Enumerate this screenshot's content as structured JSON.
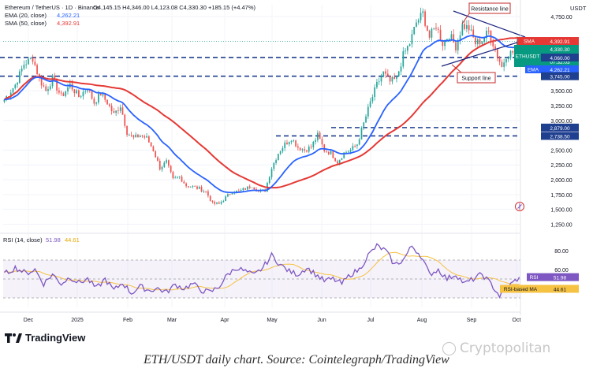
{
  "header": {
    "symbol": "Ethereum / TetherUS · 1D · Binance",
    "ohlc": "O4,145.15  H4,346.00  L4,123.08  C4,330.30  +185.15 (+4.47%)",
    "ema_label": "EMA (20, close)",
    "ema_value": "4,262.21",
    "sma_label": "SMA (50, close)",
    "sma_value": "4,392.91",
    "currency": "USDT"
  },
  "rsi_header": {
    "label": "RSI (14, close)",
    "value1": "51.98",
    "value2": "44.61"
  },
  "annotations": {
    "resistance": "Resistance line",
    "support": "Support line"
  },
  "tags": {
    "sma_name": "SMA",
    "sma_value": "4,392.91",
    "price_name": "ETHUSDT",
    "price_value": "4,330.30",
    "price_change": "+35.87%",
    "price_time": "07:32:03",
    "ema_name": "EMA",
    "ema_value": "4,262.21",
    "level_4060": "4,060.00",
    "level_3745": "3,745.00",
    "level_2879": "2,879.00",
    "level_2738": "2,738.50",
    "rsi_name": "RSI",
    "rsi_value": "51.98",
    "rsima_name": "RSI-based MA",
    "rsima_value": "44.61"
  },
  "branding": {
    "logo": "TradingView",
    "watermark": "Cryptopolitan"
  },
  "caption": "ETH/USDT daily chart. Source: Cointelegraph/TradingView",
  "colors": {
    "candle_up": "#26a69a",
    "candle_down": "#ef5350",
    "ema": "#2962ff",
    "sma": "#e53935",
    "rsi": "#7e57c2",
    "rsi_ma": "#f5c242",
    "level": "#1f3f8f",
    "annotation": "#c62828"
  },
  "chart_data": {
    "type": "candlestick",
    "x_labels": [
      "Dec",
      "2025",
      "Feb",
      "Mar",
      "Apr",
      "May",
      "Jun",
      "Jul",
      "Aug",
      "Sep",
      "Oct"
    ],
    "y_ticks": [
      1250,
      1500,
      1750,
      2000,
      2250,
      2500,
      3000,
      3250,
      3500,
      4750
    ],
    "ylim": [
      1150,
      4950
    ],
    "anchors": [
      [
        0,
        3350
      ],
      [
        5,
        3600
      ],
      [
        9,
        3950
      ],
      [
        13,
        4050
      ],
      [
        16,
        3700
      ],
      [
        19,
        3500
      ],
      [
        22,
        3700
      ],
      [
        26,
        3400
      ],
      [
        30,
        3600
      ],
      [
        34,
        3400
      ],
      [
        38,
        3550
      ],
      [
        41,
        3300
      ],
      [
        44,
        3450
      ],
      [
        47,
        3300
      ],
      [
        50,
        3100
      ],
      [
        53,
        3250
      ],
      [
        56,
        2800
      ],
      [
        59,
        2700
      ],
      [
        62,
        2750
      ],
      [
        65,
        2700
      ],
      [
        68,
        2500
      ],
      [
        71,
        2200
      ],
      [
        74,
        2300
      ],
      [
        77,
        2000
      ],
      [
        80,
        2050
      ],
      [
        83,
        1900
      ],
      [
        86,
        1880
      ],
      [
        89,
        1850
      ],
      [
        92,
        1800
      ],
      [
        95,
        1600
      ],
      [
        98,
        1590
      ],
      [
        101,
        1700
      ],
      [
        104,
        1800
      ],
      [
        107,
        1800
      ],
      [
        110,
        1850
      ],
      [
        113,
        1900
      ],
      [
        116,
        1800
      ],
      [
        119,
        1820
      ],
      [
        122,
        2200
      ],
      [
        125,
        2450
      ],
      [
        128,
        2600
      ],
      [
        131,
        2700
      ],
      [
        134,
        2550
      ],
      [
        137,
        2500
      ],
      [
        140,
        2550
      ],
      [
        143,
        2750
      ],
      [
        146,
        2500
      ],
      [
        149,
        2450
      ],
      [
        152,
        2300
      ],
      [
        155,
        2450
      ],
      [
        158,
        2500
      ],
      [
        161,
        2600
      ],
      [
        164,
        2950
      ],
      [
        167,
        3300
      ],
      [
        170,
        3600
      ],
      [
        173,
        3800
      ],
      [
        176,
        3650
      ],
      [
        179,
        3700
      ],
      [
        182,
        4100
      ],
      [
        185,
        4300
      ],
      [
        188,
        4650
      ],
      [
        191,
        4800
      ],
      [
        194,
        4400
      ],
      [
        197,
        4600
      ],
      [
        200,
        4300
      ],
      [
        203,
        4450
      ],
      [
        206,
        4250
      ],
      [
        209,
        4600
      ],
      [
        212,
        4550
      ],
      [
        215,
        4300
      ],
      [
        218,
        4350
      ],
      [
        221,
        4500
      ],
      [
        224,
        4200
      ],
      [
        227,
        3900
      ],
      [
        229,
        4100
      ],
      [
        232,
        4150
      ],
      [
        235,
        4330
      ]
    ],
    "ema20_final": 4262.21,
    "sma50_final": 4392.91,
    "levels": [
      {
        "value": 4060,
        "style": "dashed"
      },
      {
        "value": 3745,
        "style": "dashed"
      },
      {
        "value": 2879,
        "style": "dashed"
      },
      {
        "value": 2738.5,
        "style": "dashed"
      }
    ],
    "rsi": {
      "ylim": [
        20,
        95
      ],
      "ticks": [
        80,
        60,
        40
      ],
      "band": [
        30,
        70
      ],
      "anchors": [
        [
          0,
          55
        ],
        [
          5,
          62
        ],
        [
          10,
          56
        ],
        [
          14,
          60
        ],
        [
          18,
          45
        ],
        [
          22,
          55
        ],
        [
          26,
          45
        ],
        [
          30,
          52
        ],
        [
          34,
          46
        ],
        [
          38,
          50
        ],
        [
          42,
          40
        ],
        [
          46,
          50
        ],
        [
          50,
          38
        ],
        [
          54,
          46
        ],
        [
          58,
          35
        ],
        [
          62,
          42
        ],
        [
          66,
          38
        ],
        [
          70,
          40
        ],
        [
          74,
          36
        ],
        [
          78,
          44
        ],
        [
          82,
          40
        ],
        [
          86,
          45
        ],
        [
          90,
          38
        ],
        [
          94,
          36
        ],
        [
          98,
          42
        ],
        [
          102,
          55
        ],
        [
          106,
          62
        ],
        [
          110,
          58
        ],
        [
          114,
          54
        ],
        [
          118,
          62
        ],
        [
          122,
          75
        ],
        [
          126,
          65
        ],
        [
          130,
          58
        ],
        [
          134,
          55
        ],
        [
          138,
          62
        ],
        [
          142,
          55
        ],
        [
          146,
          48
        ],
        [
          150,
          50
        ],
        [
          154,
          45
        ],
        [
          158,
          55
        ],
        [
          162,
          60
        ],
        [
          166,
          75
        ],
        [
          170,
          85
        ],
        [
          174,
          80
        ],
        [
          178,
          65
        ],
        [
          182,
          70
        ],
        [
          186,
          85
        ],
        [
          190,
          75
        ],
        [
          194,
          55
        ],
        [
          198,
          60
        ],
        [
          202,
          50
        ],
        [
          206,
          55
        ],
        [
          210,
          45
        ],
        [
          214,
          50
        ],
        [
          218,
          55
        ],
        [
          222,
          45
        ],
        [
          226,
          32
        ],
        [
          229,
          40
        ],
        [
          232,
          46
        ],
        [
          235,
          51.98
        ]
      ],
      "final": 51.98,
      "ma_final": 44.61
    }
  }
}
